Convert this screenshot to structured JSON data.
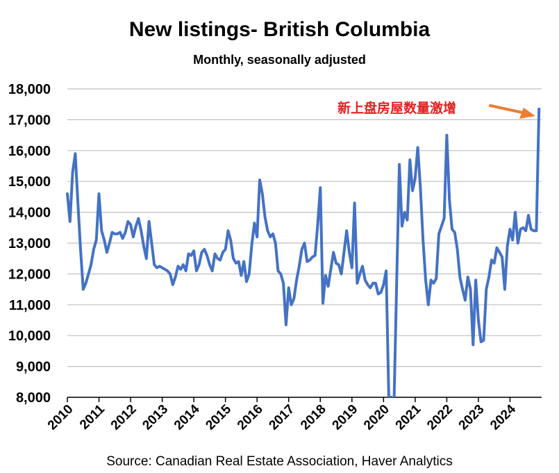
{
  "chart_data": {
    "type": "line",
    "title": "New listings- British Columbia",
    "subtitle": "Monthly, seasonally adjusted",
    "source": "Source: Canadian Real Estate Association, Haver Analytics",
    "ylim": [
      8000,
      18000
    ],
    "yticks": [
      "8,000",
      "9,000",
      "10,000",
      "11,000",
      "12,000",
      "13,000",
      "14,000",
      "15,000",
      "16,000",
      "17,000",
      "18,000"
    ],
    "ytick_values": [
      8000,
      9000,
      10000,
      11000,
      12000,
      13000,
      14000,
      15000,
      16000,
      17000,
      18000
    ],
    "xlim": [
      2010,
      2025
    ],
    "xticks": [
      "2010",
      "2011",
      "2012",
      "2013",
      "2014",
      "2015",
      "2016",
      "2017",
      "2018",
      "2019",
      "2020",
      "2021",
      "2022",
      "2023",
      "2024"
    ],
    "xtick_values": [
      2010,
      2011,
      2012,
      2013,
      2014,
      2015,
      2016,
      2017,
      2018,
      2019,
      2020,
      2021,
      2022,
      2023,
      2024
    ],
    "grid": true,
    "series_color": "#4472c4",
    "annotation": {
      "text": "新上盘房屋数量激增",
      "color": "#e02020",
      "arrow_color": "#ed7d31",
      "points_to": [
        2024.92,
        17150
      ]
    },
    "series": [
      {
        "x_start": 2010.0,
        "x_step": 0.08333,
        "values": [
          14600,
          13700,
          15300,
          15900,
          14300,
          12800,
          11500,
          11700,
          12000,
          12300,
          12800,
          13100,
          14600,
          13400,
          13100,
          12700,
          13000,
          13350,
          13300,
          13300,
          13350,
          13150,
          13350,
          13700,
          13600,
          13200,
          13550,
          13800,
          13400,
          12900,
          12500,
          13700,
          13000,
          12300,
          12200,
          12250,
          12200,
          12150,
          12100,
          12000,
          11650,
          11900,
          12250,
          12150,
          12300,
          12100,
          12650,
          12600,
          12750,
          12100,
          12300,
          12700,
          12800,
          12600,
          12300,
          12100,
          12650,
          12500,
          12450,
          12700,
          12800,
          13400,
          13100,
          12500,
          12350,
          12400,
          11950,
          12400,
          11750,
          12000,
          12950,
          13650,
          13200,
          15050,
          14600,
          13850,
          13400,
          13200,
          13300,
          13000,
          12100,
          12000,
          11700,
          10350,
          11550,
          11000,
          11200,
          11800,
          12250,
          12800,
          13000,
          12400,
          12450,
          12550,
          12600,
          13600,
          14800,
          11050,
          11950,
          11600,
          12150,
          12700,
          12350,
          12300,
          12000,
          12700,
          13400,
          12700,
          12200,
          14300,
          11700,
          12000,
          12250,
          11800,
          11650,
          11550,
          11700,
          11700,
          11350,
          11400,
          11650,
          12100,
          8000,
          8000,
          7900,
          11800,
          15550,
          13550,
          14000,
          13750,
          15700,
          14700,
          15100,
          16100,
          14800,
          13100,
          11800,
          11000,
          11800,
          11700,
          11850,
          13300,
          13550,
          13800,
          16500,
          14400,
          13450,
          13350,
          12800,
          11900,
          11500,
          11150,
          11900,
          11500,
          9700,
          11800,
          10500,
          9800,
          9850,
          11500,
          11900,
          12450,
          12350,
          12850,
          12700,
          12550,
          11500,
          12900,
          13450,
          13100,
          14000,
          13000,
          13450,
          13500,
          13400,
          13900,
          13450,
          13400,
          13400,
          17350
        ]
      }
    ]
  }
}
